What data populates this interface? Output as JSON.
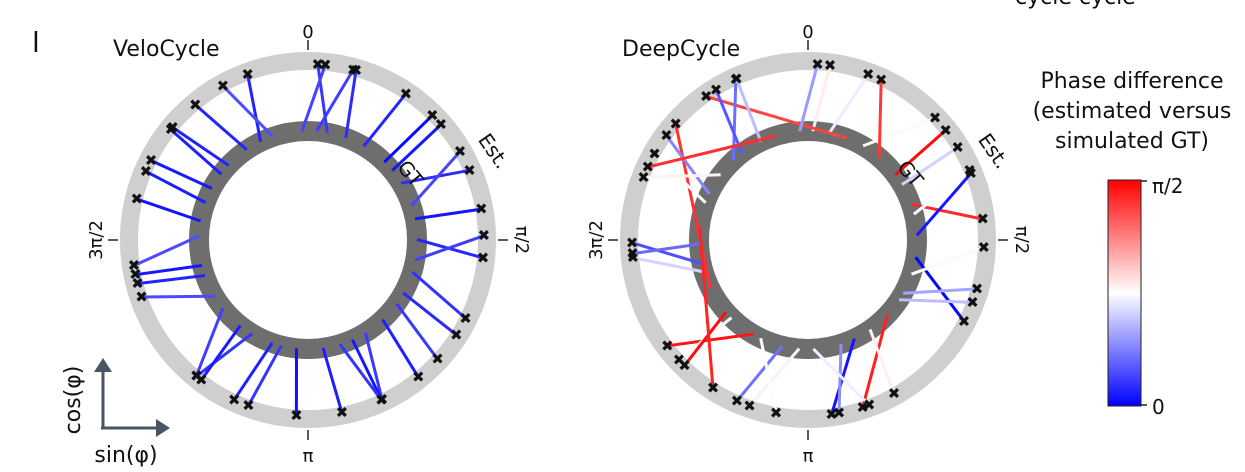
{
  "figure": {
    "panel_letter": "l",
    "top_right_clipped_text": "cycle   cycle",
    "axis_legend": {
      "vertical_label": "cos(φ)",
      "horizontal_label": "sin(φ)"
    },
    "colorbar": {
      "title_lines": [
        "Phase difference",
        "(estimated versus",
        "simulated GT)"
      ],
      "top_label": "π/2",
      "bottom_label": "0",
      "colors": {
        "low": "#0000ff",
        "mid": "#ffffff",
        "high": "#ff0000"
      }
    },
    "panels": [
      {
        "title": "VeloCycle",
        "tick_labels": {
          "top": "0",
          "right": "π/2",
          "bottom": "π",
          "left": "3π/2"
        },
        "ring_labels": {
          "outer": "Est.",
          "inner": "GT"
        }
      },
      {
        "title": "DeepCycle",
        "tick_labels": {
          "top": "0",
          "right": "π/2",
          "bottom": "π",
          "left": "3π/2"
        },
        "ring_labels": {
          "outer": "Est.",
          "inner": "GT"
        }
      }
    ]
  }
}
